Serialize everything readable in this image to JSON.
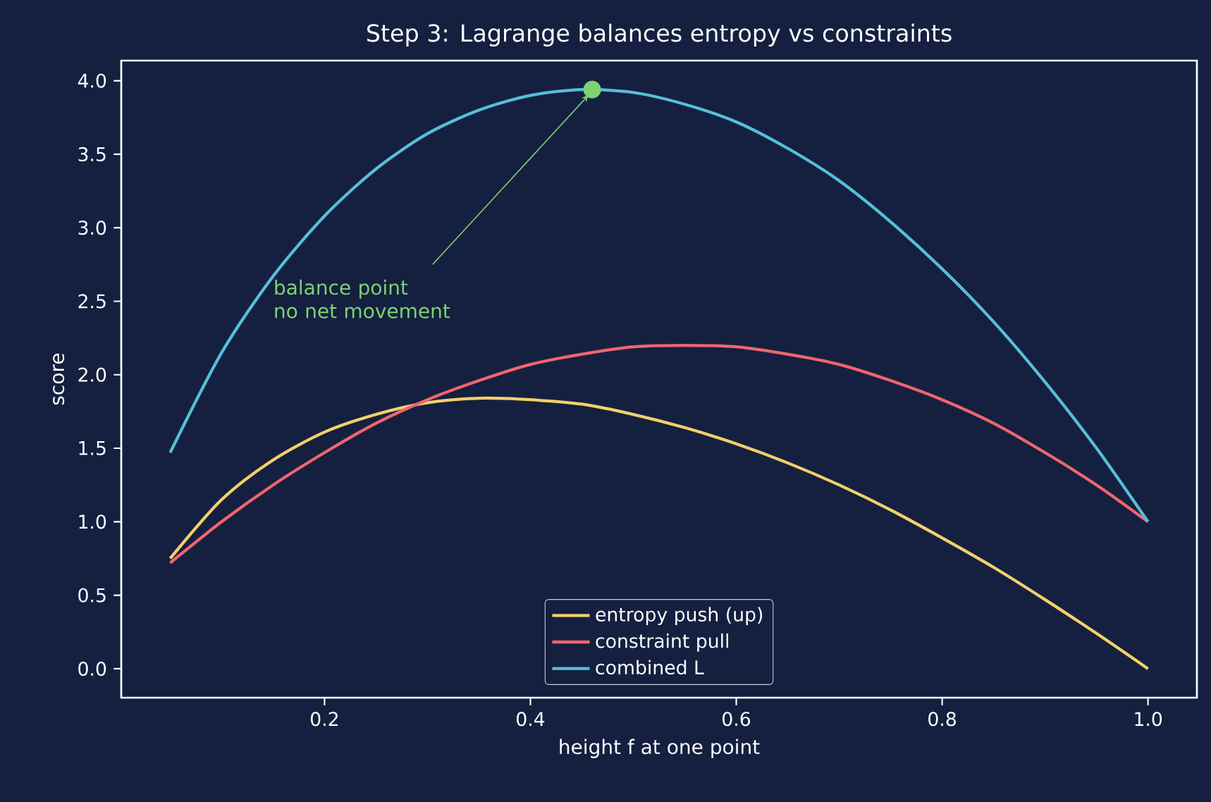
{
  "chart_data": {
    "type": "line",
    "title": "Step 3: Lagrange balances entropy vs constraints",
    "xlabel": "height f at one point",
    "ylabel": "score",
    "xlim": [
      0.0025,
      1.0475
    ],
    "ylim": [
      -0.197,
      4.137
    ],
    "xticks": [
      0.2,
      0.4,
      0.6,
      0.8,
      {
        "value": 1.0,
        "label": "1.0"
      }
    ],
    "yticks": [
      {
        "value": 0,
        "label": "0.0"
      },
      0.5,
      {
        "value": 1,
        "label": "1.0"
      },
      1.5,
      {
        "value": 2,
        "label": "2.0"
      },
      2.5,
      {
        "value": 3,
        "label": "3.0"
      },
      3.5,
      {
        "value": 4,
        "label": "4.0"
      }
    ],
    "x": [
      0.05,
      0.1,
      0.15,
      0.2,
      0.25,
      0.3,
      0.35,
      0.4,
      0.45,
      0.5,
      0.55,
      0.6,
      0.65,
      0.7,
      0.75,
      0.8,
      0.85,
      0.9,
      0.95,
      1.0
    ],
    "series": [
      {
        "name": "entropy push (up)",
        "color": "#f2d06b",
        "values": [
          0.75,
          1.15,
          1.42,
          1.61,
          1.73,
          1.81,
          1.84,
          1.83,
          1.8,
          1.73,
          1.64,
          1.53,
          1.4,
          1.25,
          1.08,
          0.89,
          0.69,
          0.47,
          0.24,
          0.0
        ]
      },
      {
        "name": "constraint pull",
        "color": "#f0656e",
        "values": [
          0.72,
          1.0,
          1.25,
          1.47,
          1.67,
          1.83,
          1.96,
          2.07,
          2.14,
          2.19,
          2.2,
          2.19,
          2.14,
          2.07,
          1.96,
          1.83,
          1.67,
          1.47,
          1.25,
          1.0
        ]
      },
      {
        "name": "combined  L",
        "color": "#56bfd9",
        "values": [
          1.47,
          2.15,
          2.67,
          3.08,
          3.4,
          3.64,
          3.8,
          3.9,
          3.94,
          3.92,
          3.84,
          3.72,
          3.54,
          3.32,
          3.04,
          2.72,
          2.36,
          1.95,
          1.5,
          1.0
        ]
      },
      {
        "type": "scatter",
        "marker": "circle",
        "color": "#7dd36f",
        "x": [
          0.46
        ],
        "values": [
          3.94
        ]
      }
    ],
    "annotations": [
      {
        "text": "balance point\nno net movement",
        "x": 0.46,
        "y": 3.94
      }
    ],
    "legend": "bottom",
    "grid": false
  }
}
